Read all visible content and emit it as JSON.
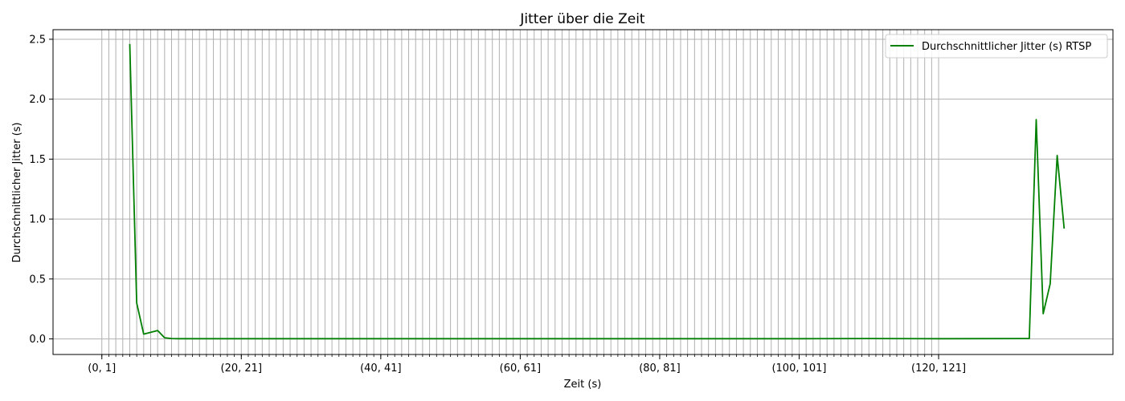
{
  "chart_data": {
    "type": "line",
    "title": "Jitter über die Zeit",
    "xlabel": "Zeit (s)",
    "ylabel": "Durchschnittlicher Jitter (s)",
    "grid": true,
    "legend_position": "top-right",
    "x_tick_labels": [
      "(0, 1]",
      "(20, 21]",
      "(40, 41]",
      "(60, 61]",
      "(80, 81]",
      "(100, 101]",
      "(120, 121]"
    ],
    "x_tick_positions": [
      0,
      20,
      40,
      60,
      80,
      100,
      120
    ],
    "x_minor_ticks_to": 120,
    "xlim": [
      -7,
      145
    ],
    "ylim": [
      -0.13,
      2.58
    ],
    "yticks": [
      0.0,
      0.5,
      1.0,
      1.5,
      2.0,
      2.5
    ],
    "ytick_labels": [
      "0.0",
      "0.5",
      "1.0",
      "1.5",
      "2.0",
      "2.5"
    ],
    "series": [
      {
        "name": "Durchschnittlicher Jitter (s) RTSP",
        "color": "#008000",
        "x": [
          4,
          5,
          6,
          8,
          9,
          10,
          11,
          20,
          40,
          60,
          80,
          100,
          110,
          120,
          133,
          134,
          135,
          136,
          137,
          138
        ],
        "y": [
          2.46,
          0.3,
          0.04,
          0.07,
          0.01,
          0.003,
          0.002,
          0.002,
          0.002,
          0.002,
          0.002,
          0.002,
          0.003,
          0.002,
          0.003,
          1.83,
          0.21,
          0.46,
          1.53,
          0.92
        ]
      }
    ]
  }
}
